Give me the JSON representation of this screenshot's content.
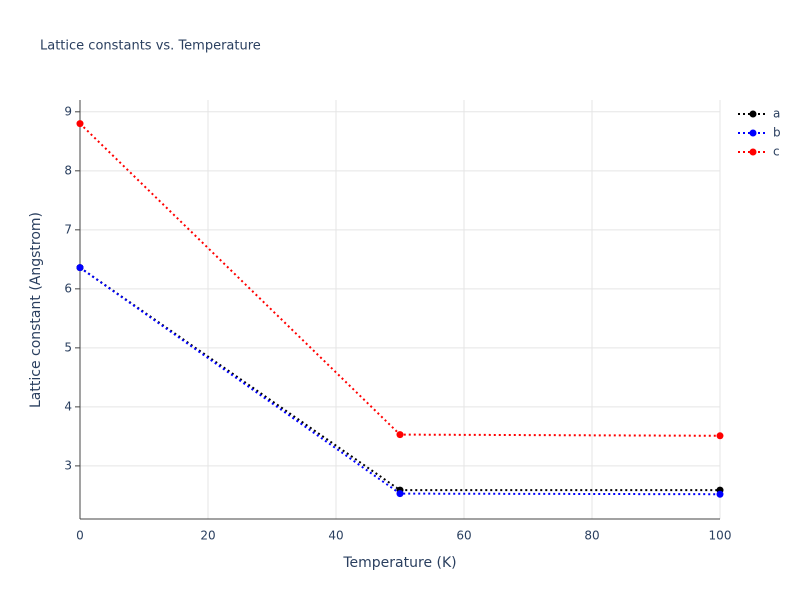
{
  "chart_data": {
    "type": "line",
    "title": "Lattice constants vs. Temperature",
    "x_label": "Temperature (K)",
    "y_label": "Lattice constant (Angstrom)",
    "x": [
      0,
      50,
      100
    ],
    "series": [
      {
        "name": "a",
        "color": "#000000",
        "values": [
          6.36,
          2.59,
          2.59
        ]
      },
      {
        "name": "b",
        "color": "#0000ff",
        "values": [
          6.36,
          2.53,
          2.52
        ]
      },
      {
        "name": "c",
        "color": "#ff0000",
        "values": [
          8.8,
          3.53,
          3.51
        ]
      }
    ],
    "xlim": [
      0,
      100
    ],
    "xticks": [
      0,
      20,
      40,
      60,
      80,
      100
    ],
    "ylim": [
      2.1,
      9.2
    ],
    "yticks": [
      3,
      4,
      5,
      6,
      7,
      8,
      9
    ],
    "grid": true,
    "legend": "top-right"
  }
}
